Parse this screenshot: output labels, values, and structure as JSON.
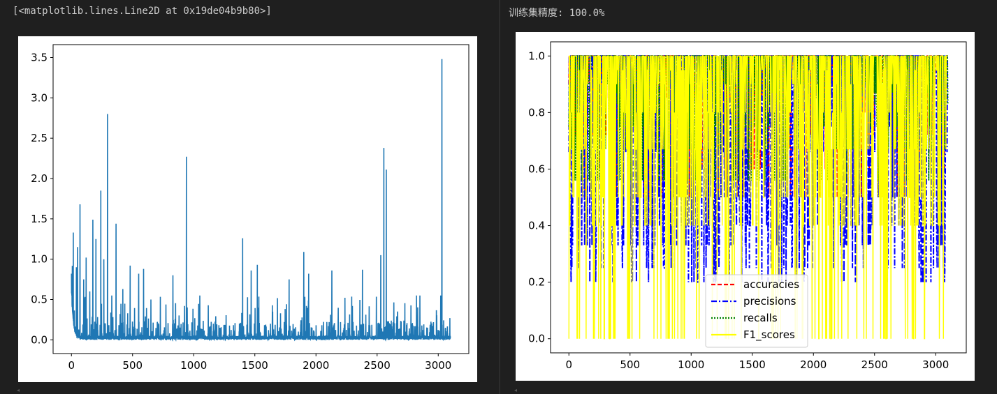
{
  "left_cell": {
    "output_text": "[<matplotlib.lines.Line2D at 0x19de04b9b80>]"
  },
  "right_cell": {
    "output_text": "训练集精度: 100.0%"
  },
  "colors": {
    "background": "#1f1f1f",
    "output_text": "#cccccc",
    "loss_line": "#1f77b4",
    "accuracies": "#ff0000",
    "precisions": "#0000ff",
    "recalls": "#008000",
    "F1_scores": "#ffff00"
  },
  "chart_data": [
    {
      "type": "line",
      "title": "",
      "xlabel": "",
      "ylabel": "",
      "xlim": [
        -150,
        3250
      ],
      "ylim": [
        -0.17,
        3.66
      ],
      "xticks": [
        0,
        500,
        1000,
        1500,
        2000,
        2500,
        3000
      ],
      "yticks": [
        "0.0",
        "0.5",
        "1.0",
        "1.5",
        "2.0",
        "2.5",
        "3.0",
        "3.5"
      ],
      "grid": false,
      "legend": "none",
      "n_points": 3100,
      "base_range": [
        0.0,
        0.25
      ],
      "spikes": [
        {
          "x": 0,
          "y": 0.82
        },
        {
          "x": 15,
          "y": 1.33
        },
        {
          "x": 40,
          "y": 0.9
        },
        {
          "x": 50,
          "y": 1.15
        },
        {
          "x": 70,
          "y": 1.68
        },
        {
          "x": 100,
          "y": 0.75
        },
        {
          "x": 120,
          "y": 1.02
        },
        {
          "x": 150,
          "y": 0.6
        },
        {
          "x": 175,
          "y": 1.49
        },
        {
          "x": 200,
          "y": 1.25
        },
        {
          "x": 240,
          "y": 1.85
        },
        {
          "x": 265,
          "y": 1.0
        },
        {
          "x": 295,
          "y": 2.8
        },
        {
          "x": 330,
          "y": 0.55
        },
        {
          "x": 365,
          "y": 1.44
        },
        {
          "x": 420,
          "y": 0.63
        },
        {
          "x": 480,
          "y": 0.92
        },
        {
          "x": 550,
          "y": 0.82
        },
        {
          "x": 590,
          "y": 0.88
        },
        {
          "x": 650,
          "y": 0.5
        },
        {
          "x": 830,
          "y": 0.8
        },
        {
          "x": 940,
          "y": 2.27
        },
        {
          "x": 1050,
          "y": 0.55
        },
        {
          "x": 1400,
          "y": 1.26
        },
        {
          "x": 1470,
          "y": 0.86
        },
        {
          "x": 1520,
          "y": 0.93
        },
        {
          "x": 1780,
          "y": 0.75
        },
        {
          "x": 1900,
          "y": 1.09
        },
        {
          "x": 1940,
          "y": 0.82
        },
        {
          "x": 2130,
          "y": 0.86
        },
        {
          "x": 2380,
          "y": 0.87
        },
        {
          "x": 2530,
          "y": 1.05
        },
        {
          "x": 2555,
          "y": 2.38
        },
        {
          "x": 2575,
          "y": 2.11
        },
        {
          "x": 2850,
          "y": 0.55
        },
        {
          "x": 3020,
          "y": 0.55
        },
        {
          "x": 3030,
          "y": 3.48
        },
        {
          "x": 3095,
          "y": 0.27
        }
      ]
    },
    {
      "type": "line",
      "title": "",
      "xlabel": "",
      "ylabel": "",
      "xlim": [
        -150,
        3250
      ],
      "ylim": [
        -0.05,
        1.05
      ],
      "xticks": [
        0,
        500,
        1000,
        1500,
        2000,
        2500,
        3000
      ],
      "yticks": [
        "0.0",
        "0.2",
        "0.4",
        "0.6",
        "0.8",
        "1.0"
      ],
      "grid": false,
      "legend": "lower-center",
      "n_points": 3100,
      "series": [
        {
          "name": "accuracies",
          "style": "dashed",
          "color": "#ff0000",
          "base": 1.0,
          "levels": [
            0.92,
            0.9,
            0.85,
            0.8,
            0.72,
            0.6,
            0.5
          ]
        },
        {
          "name": "precisions",
          "style": "dashdot",
          "color": "#0000ff",
          "base": 1.0,
          "levels": [
            0.85,
            0.75,
            0.66,
            0.5,
            0.4,
            0.33,
            0.25,
            0.2
          ]
        },
        {
          "name": "recalls",
          "style": "dotted",
          "color": "#008000",
          "base": 1.0,
          "levels": [
            0.9,
            0.87,
            0.83,
            0.75,
            0.67,
            0.56
          ]
        },
        {
          "name": "F1_scores",
          "style": "solid",
          "color": "#ffff00",
          "base": 1.0,
          "levels": [
            0.95,
            0.9,
            0.8,
            0.67,
            0.5,
            0.4,
            0.0
          ]
        }
      ]
    }
  ]
}
